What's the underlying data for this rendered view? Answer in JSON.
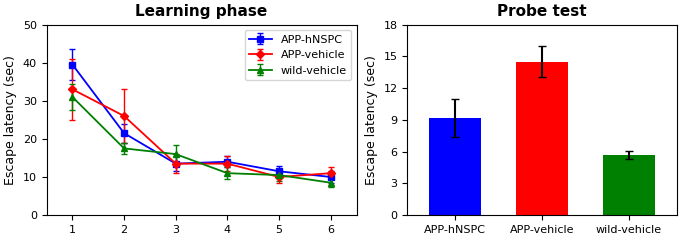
{
  "chart_data": [
    {
      "type": "line",
      "title": "Learning phase",
      "ylabel": "Escape latency (sec)",
      "x": [
        1,
        2,
        3,
        4,
        5,
        6
      ],
      "xlim": [
        0.5,
        6.5
      ],
      "xticks": [
        1,
        2,
        3,
        4,
        5,
        6
      ],
      "ylim": [
        0,
        50
      ],
      "yticks": [
        0,
        10,
        20,
        30,
        40,
        50
      ],
      "legend": "upper right",
      "series": [
        {
          "name": "APP-hNSPC",
          "color": "blue",
          "marker": "square",
          "values": [
            39.5,
            21.5,
            13.5,
            14.0,
            11.5,
            10.0
          ],
          "errors": [
            4.0,
            2.5,
            2.0,
            1.5,
            1.5,
            1.5
          ]
        },
        {
          "name": "APP-vehicle",
          "color": "red",
          "marker": "diamond",
          "values": [
            33.0,
            26.0,
            13.5,
            13.5,
            10.0,
            11.0
          ],
          "errors": [
            8.0,
            7.0,
            2.5,
            2.0,
            1.5,
            1.5
          ]
        },
        {
          "name": "wild-vehicle",
          "color": "green",
          "marker": "triangle",
          "values": [
            31.0,
            17.5,
            16.0,
            11.0,
            10.5,
            8.5
          ],
          "errors": [
            3.5,
            1.5,
            2.5,
            1.5,
            1.5,
            1.0
          ]
        }
      ]
    },
    {
      "type": "bar",
      "title": "Probe test",
      "ylabel": "Escape latency (sec)",
      "categories": [
        "APP-hNSPC",
        "APP-vehicle",
        "wild-vehicle"
      ],
      "values": [
        9.2,
        14.5,
        5.7
      ],
      "errors": [
        1.8,
        1.5,
        0.4
      ],
      "colors": [
        "blue",
        "red",
        "green"
      ],
      "ylim": [
        0,
        18
      ],
      "yticks": [
        0,
        3,
        6,
        9,
        12,
        15,
        18
      ]
    }
  ]
}
